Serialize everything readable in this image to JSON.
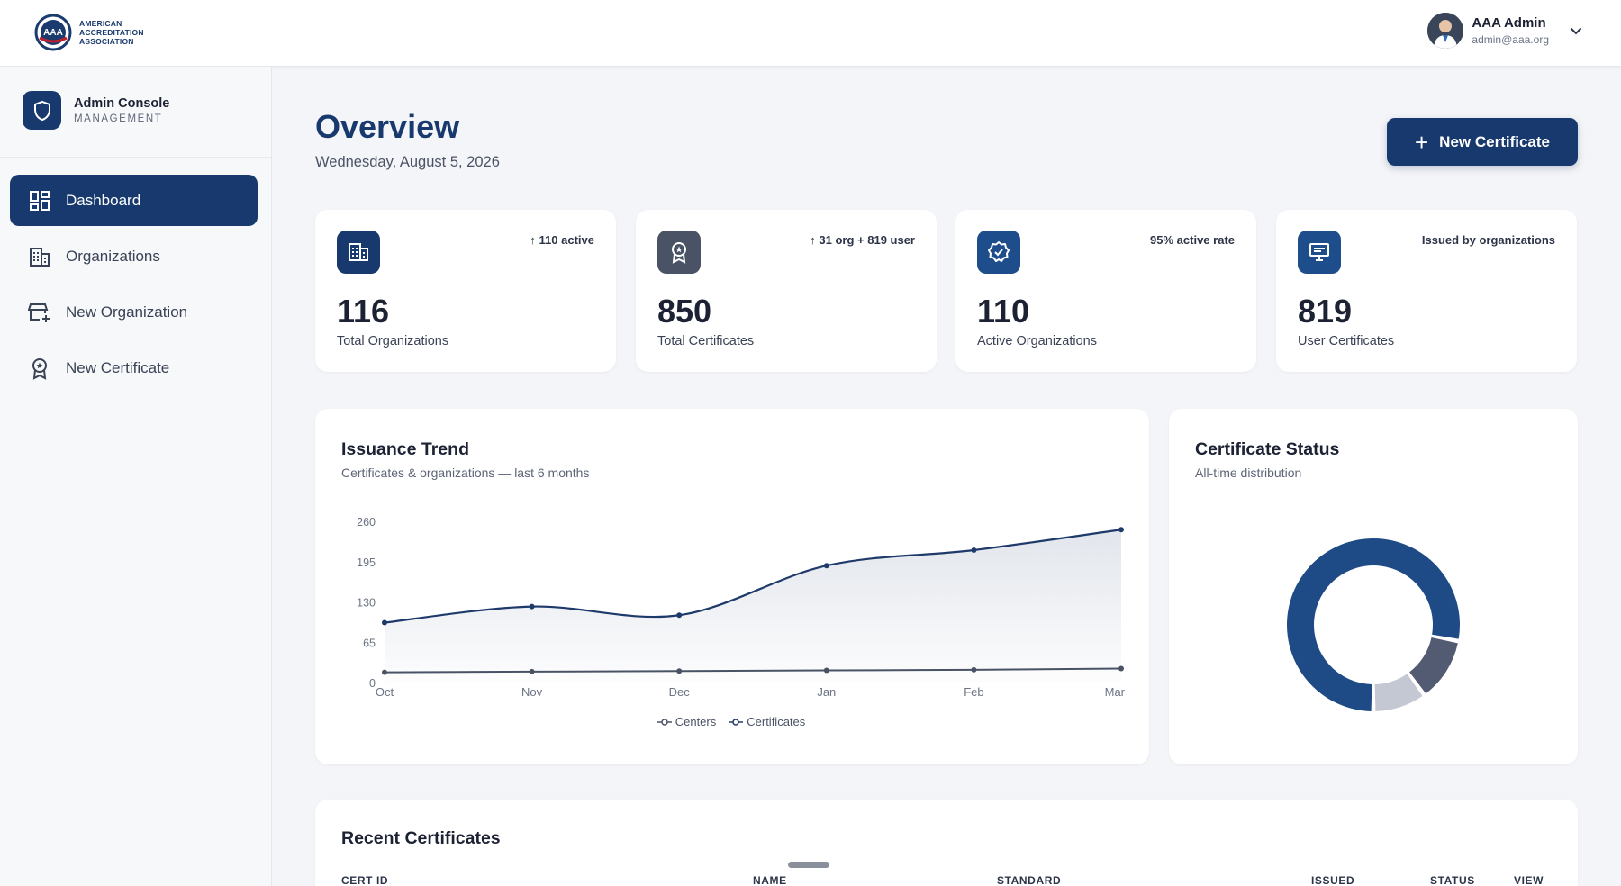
{
  "brand": {
    "logo_line1": "AMERICAN",
    "logo_line2": "ACCREDITATION",
    "logo_line3": "ASSOCIATION",
    "logo_badge": "AAA"
  },
  "user": {
    "name": "AAA Admin",
    "email": "admin@aaa.org"
  },
  "console": {
    "title": "Admin Console",
    "subtitle": "MANAGEMENT"
  },
  "nav": [
    {
      "label": "Dashboard",
      "icon": "dashboard-icon"
    },
    {
      "label": "Organizations",
      "icon": "building-icon"
    },
    {
      "label": "New Organization",
      "icon": "store-add-icon"
    },
    {
      "label": "New Certificate",
      "icon": "award-icon"
    }
  ],
  "header": {
    "title": "Overview",
    "date": "Wednesday, August 5, 2026",
    "new_certificate_label": "New Certificate"
  },
  "stats": [
    {
      "value": "116",
      "label": "Total Organizations",
      "meta": "110 active",
      "meta_arrow": true,
      "icon": "building-icon",
      "icon_bg": "#17396d"
    },
    {
      "value": "850",
      "label": "Total Certificates",
      "meta": "31 org + 819 user",
      "meta_arrow": true,
      "icon": "award-icon",
      "icon_bg": "#4a5366"
    },
    {
      "value": "110",
      "label": "Active Organizations",
      "meta": "95% active rate",
      "meta_arrow": false,
      "icon": "verified-icon",
      "icon_bg": "#1e4d8c"
    },
    {
      "value": "819",
      "label": "User Certificates",
      "meta": "Issued by organizations",
      "meta_arrow": false,
      "icon": "monitor-icon",
      "icon_bg": "#1e4d8c"
    }
  ],
  "trend": {
    "title": "Issuance Trend",
    "subtitle": "Certificates & organizations — last 6 months"
  },
  "status": {
    "title": "Certificate Status",
    "subtitle": "All-time distribution"
  },
  "recent": {
    "title": "Recent Certificates",
    "columns": [
      "CERT ID",
      "NAME",
      "STANDARD",
      "ISSUED",
      "STATUS",
      "VIEW"
    ]
  },
  "chart_data": [
    {
      "type": "area",
      "title": "Issuance Trend",
      "categories": [
        "Oct",
        "Nov",
        "Dec",
        "Jan",
        "Feb",
        "Mar"
      ],
      "yticks": [
        0,
        65,
        130,
        195,
        260
      ],
      "ylim": [
        0,
        260
      ],
      "series": [
        {
          "name": "Certificates",
          "values": [
            98,
            124,
            110,
            190,
            215,
            248
          ],
          "color": "#1e3a6a"
        },
        {
          "name": "Centers",
          "values": [
            18,
            19,
            20,
            21,
            22,
            24
          ],
          "color": "#4a5366"
        }
      ],
      "legend": [
        "Centers",
        "Certificates"
      ],
      "legend_position": "bottom"
    },
    {
      "type": "pie",
      "title": "Certificate Status",
      "slices": [
        {
          "value": 78,
          "color": "#1e4a86"
        },
        {
          "value": 12,
          "color": "#535b72"
        },
        {
          "value": 10,
          "color": "#c4c8d2"
        }
      ]
    }
  ]
}
